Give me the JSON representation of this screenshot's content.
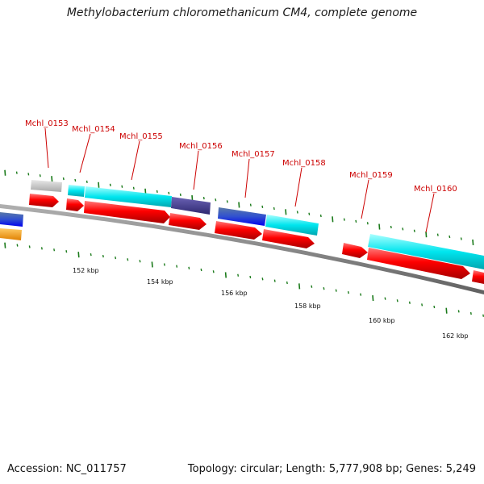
{
  "title": "Methylobacterium chloromethanicum CM4, complete genome",
  "footer": {
    "accession": "Accession: NC_011757",
    "stats": "Topology: circular; Length: 5,777,908 bp; Genes: 5,249"
  },
  "gene_labels": [
    "Mchl_0153",
    "Mchl_0154",
    "Mchl_0155",
    "Mchl_0156",
    "Mchl_0157",
    "Mchl_0158",
    "Mchl_0159",
    "Mchl_0160"
  ],
  "kbp_labels": [
    "152 kbp",
    "154 kbp",
    "156 kbp",
    "158 kbp",
    "160 kbp",
    "162 kbp"
  ],
  "colors": {
    "cds": "#ff0000",
    "cog_cyan": "#00e5ee",
    "cog_gray": "#c8c8c8",
    "cog_slate": "#483d8b",
    "cog_blue": "#0000ee",
    "cog_orange": "#ff9900",
    "backbone": "#808080",
    "ticks": "#1a7a1a",
    "labels": "#cc0000"
  }
}
